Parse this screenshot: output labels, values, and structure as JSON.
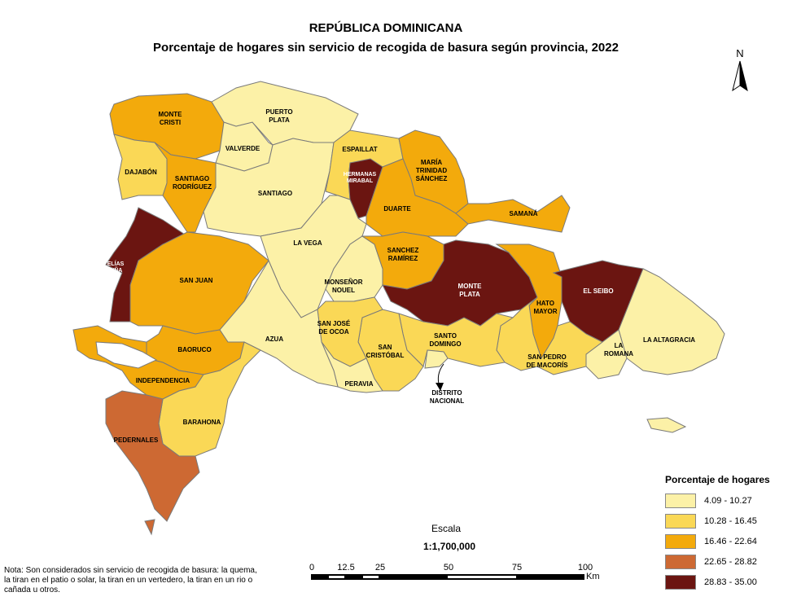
{
  "header": {
    "title": "REPÚBLICA DOMINICANA",
    "subtitle": "Porcentaje de hogares sin servicio de recogida de basura según provincia, 2022"
  },
  "north_arrow": {
    "label": "N",
    "icon": "north-arrow-icon"
  },
  "legend": {
    "title": "Porcentaje de hogares",
    "classes": [
      {
        "label": "4.09 - 10.27",
        "color": "#FCF1A7"
      },
      {
        "label": "10.28 - 16.45",
        "color": "#FAD856"
      },
      {
        "label": "16.46 - 22.64",
        "color": "#F3AA0C"
      },
      {
        "label": "22.65 - 28.82",
        "color": "#CD6933"
      },
      {
        "label": "28.83 - 35.00",
        "color": "#6B1511"
      }
    ]
  },
  "provinces": [
    {
      "name": "MONTE\nCRISTI",
      "class": 2
    },
    {
      "name": "DAJABÓN",
      "class": 1
    },
    {
      "name": "SANTIAGO\nRODRÍGUEZ",
      "class": 2
    },
    {
      "name": "VALVERDE",
      "class": 0
    },
    {
      "name": "PUERTO\nPLATA",
      "class": 0
    },
    {
      "name": "SANTIAGO",
      "class": 0
    },
    {
      "name": "ESPAILLAT",
      "class": 1
    },
    {
      "name": "HERMANAS\nMIRABAL",
      "class": 4
    },
    {
      "name": "MARÍA\nTRINIDAD\nSÁNCHEZ",
      "class": 2
    },
    {
      "name": "DUARTE",
      "class": 2
    },
    {
      "name": "SAMANÁ",
      "class": 2
    },
    {
      "name": "ELÍAS\nPIÑA",
      "class": 4
    },
    {
      "name": "SAN JUAN",
      "class": 2
    },
    {
      "name": "LA VEGA",
      "class": 0
    },
    {
      "name": "MONSEÑOR\nNOUEL",
      "class": 0
    },
    {
      "name": "SANCHEZ\nRAMÍREZ",
      "class": 2
    },
    {
      "name": "MONTE\nPLATA",
      "class": 4
    },
    {
      "name": "HATO\nMAYOR",
      "class": 2
    },
    {
      "name": "EL SEIBO",
      "class": 4
    },
    {
      "name": "LA ALTAGRACIA",
      "class": 0
    },
    {
      "name": "LA\nROMANA",
      "class": 0
    },
    {
      "name": "SAN PEDRO\nDE MACORÍS",
      "class": 1
    },
    {
      "name": "SANTO\nDOMINGO",
      "class": 1
    },
    {
      "name": "DISTRITO\nNACIONAL",
      "class": 0
    },
    {
      "name": "SAN\nCRISTÓBAL",
      "class": 1
    },
    {
      "name": "SAN JOSÉ\nDE OCOA",
      "class": 1
    },
    {
      "name": "PERAVIA",
      "class": 0
    },
    {
      "name": "AZUA",
      "class": 0
    },
    {
      "name": "BAORUCO",
      "class": 2
    },
    {
      "name": "INDEPENDENCIA",
      "class": 2
    },
    {
      "name": "BARAHONA",
      "class": 1
    },
    {
      "name": "PEDERNALES",
      "class": 3
    }
  ],
  "scale": {
    "label": "Escala",
    "ratio": "1:1,700,000",
    "ticks": [
      "0",
      "12.5",
      "25",
      "50",
      "75",
      "100"
    ],
    "unit": "Km"
  },
  "note": "Nota: Son considerados sin servicio de recogida de basura: la quema, la tiran en el patio o solar, la tiran en un vertedero, la tiran en un rio o cañada u otros."
}
